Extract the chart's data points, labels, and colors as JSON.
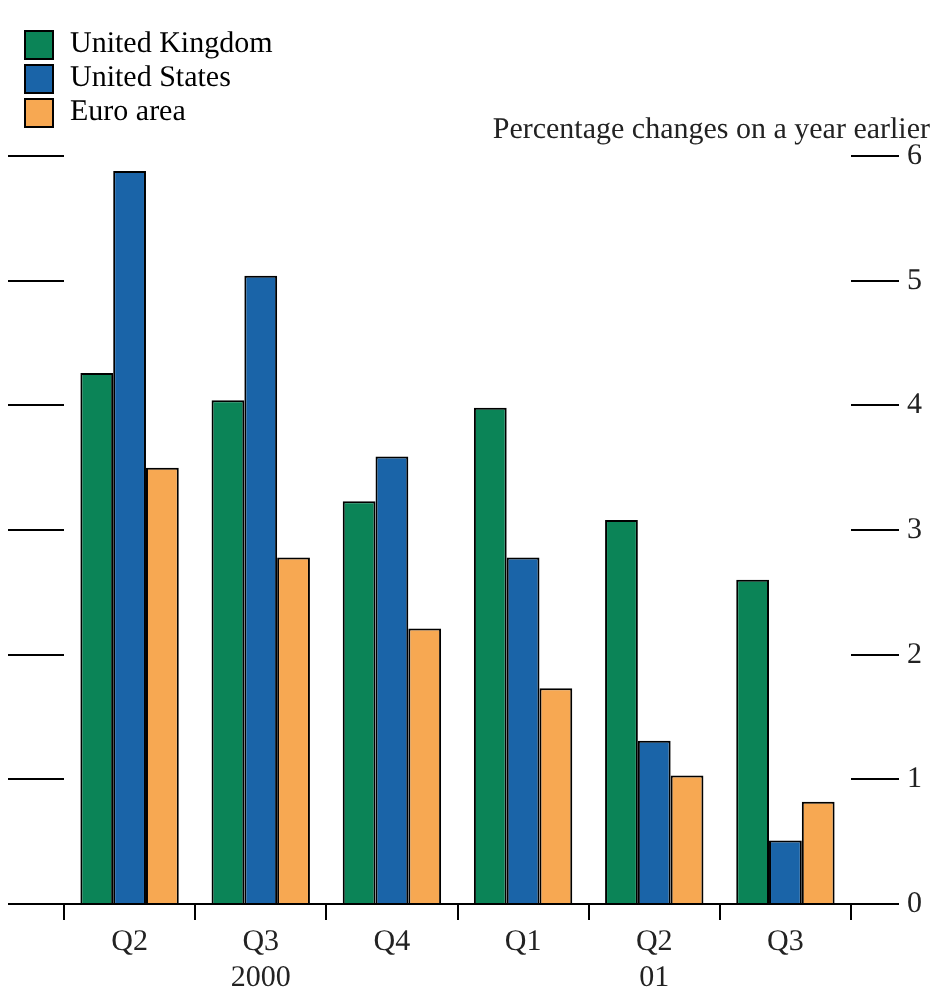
{
  "chart_data": {
    "type": "bar",
    "subtitle": "Percentage changes on a year earlier",
    "categories": [
      "Q2",
      "Q3\n2000",
      "Q4",
      "Q1",
      "Q2\n01",
      "Q3"
    ],
    "series": [
      {
        "name": "United Kingdom",
        "color": "#0b8457",
        "values": [
          4.26,
          4.04,
          3.23,
          3.98,
          3.08,
          2.6
        ]
      },
      {
        "name": "United States",
        "color": "#1a64a8",
        "values": [
          5.88,
          5.04,
          3.59,
          2.78,
          1.31,
          0.51
        ]
      },
      {
        "name": "Euro area",
        "color": "#f7a852",
        "values": [
          3.5,
          2.78,
          2.21,
          1.73,
          1.03,
          0.82
        ]
      }
    ],
    "ylim": [
      0,
      6
    ],
    "yticks": [
      0,
      1,
      2,
      3,
      4,
      5,
      6
    ],
    "grid": false,
    "legend": "top left"
  }
}
